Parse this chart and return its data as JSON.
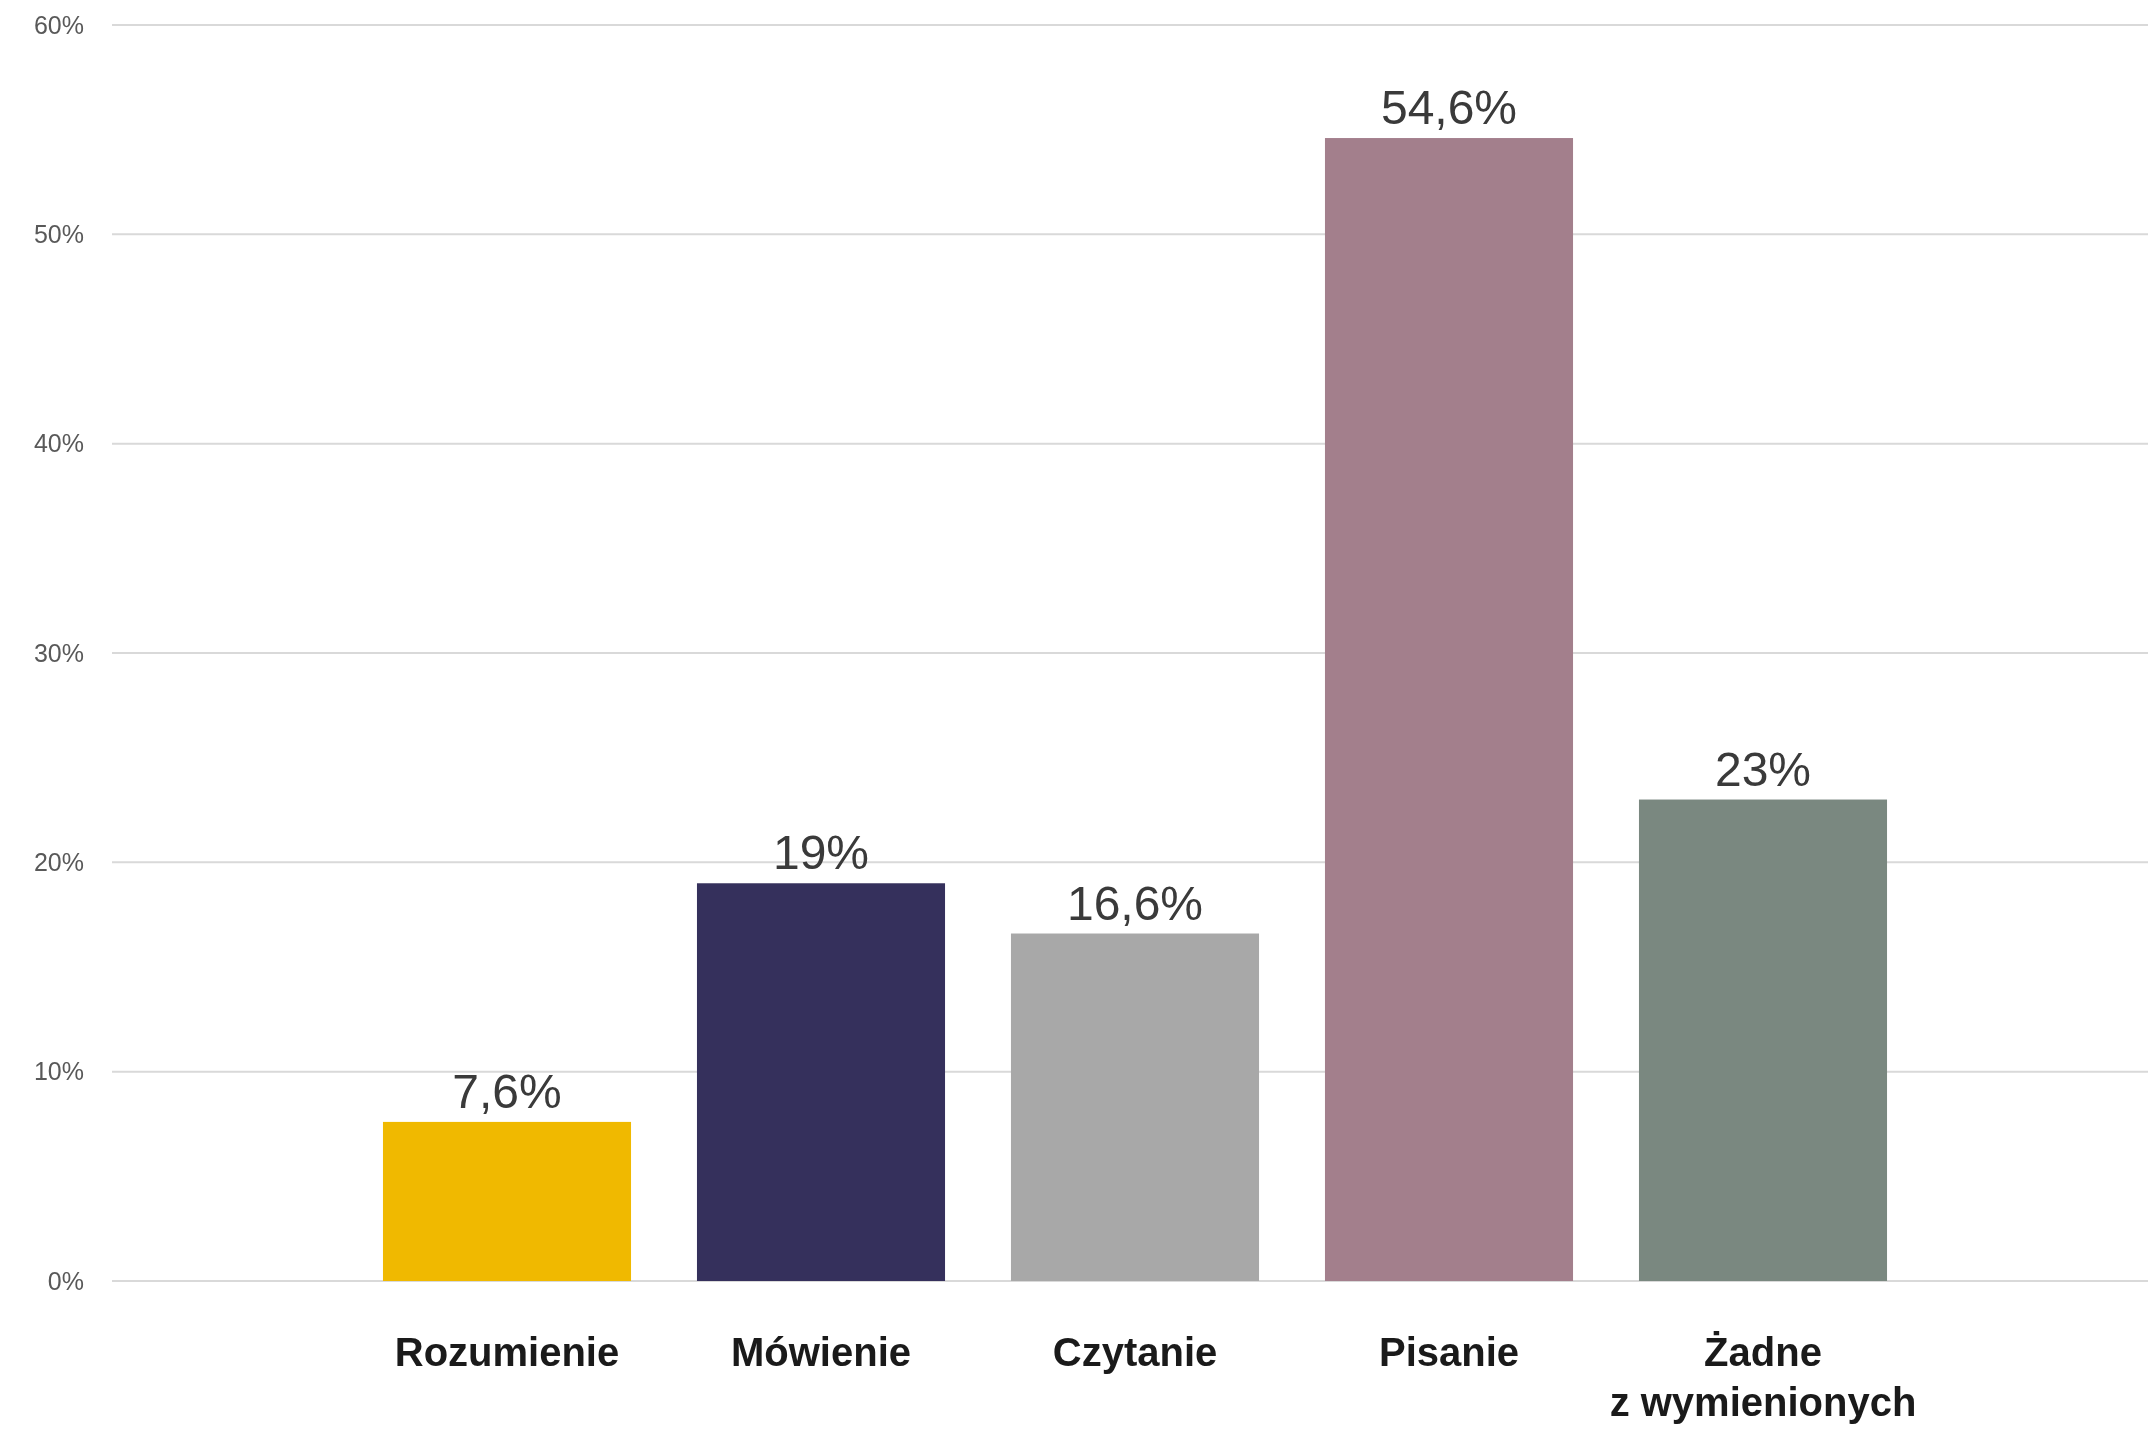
{
  "chart_data": {
    "type": "bar",
    "categories": [
      "Rozumienie",
      "Mówienie",
      "Czytanie",
      "Pisanie",
      "Żadne z wymienionych"
    ],
    "values": [
      7.6,
      19,
      16.6,
      54.6,
      23
    ],
    "colors": [
      "#f0b900",
      "#35305c",
      "#a8a8a8",
      "#a37f8c",
      "#7a8880"
    ],
    "value_labels": [
      "7,6%",
      "19%",
      "16,6%",
      "54,6%",
      "23%"
    ],
    "ylim": [
      0,
      60
    ],
    "yticks": [
      {
        "value": 0,
        "label": "0%"
      },
      {
        "value": 10,
        "label": "10%"
      },
      {
        "value": 20,
        "label": "20%"
      },
      {
        "value": 30,
        "label": "30%"
      },
      {
        "value": 40,
        "label": "40%"
      },
      {
        "value": 50,
        "label": "50%"
      },
      {
        "value": 60,
        "label": "60%"
      }
    ],
    "grid": "y"
  }
}
